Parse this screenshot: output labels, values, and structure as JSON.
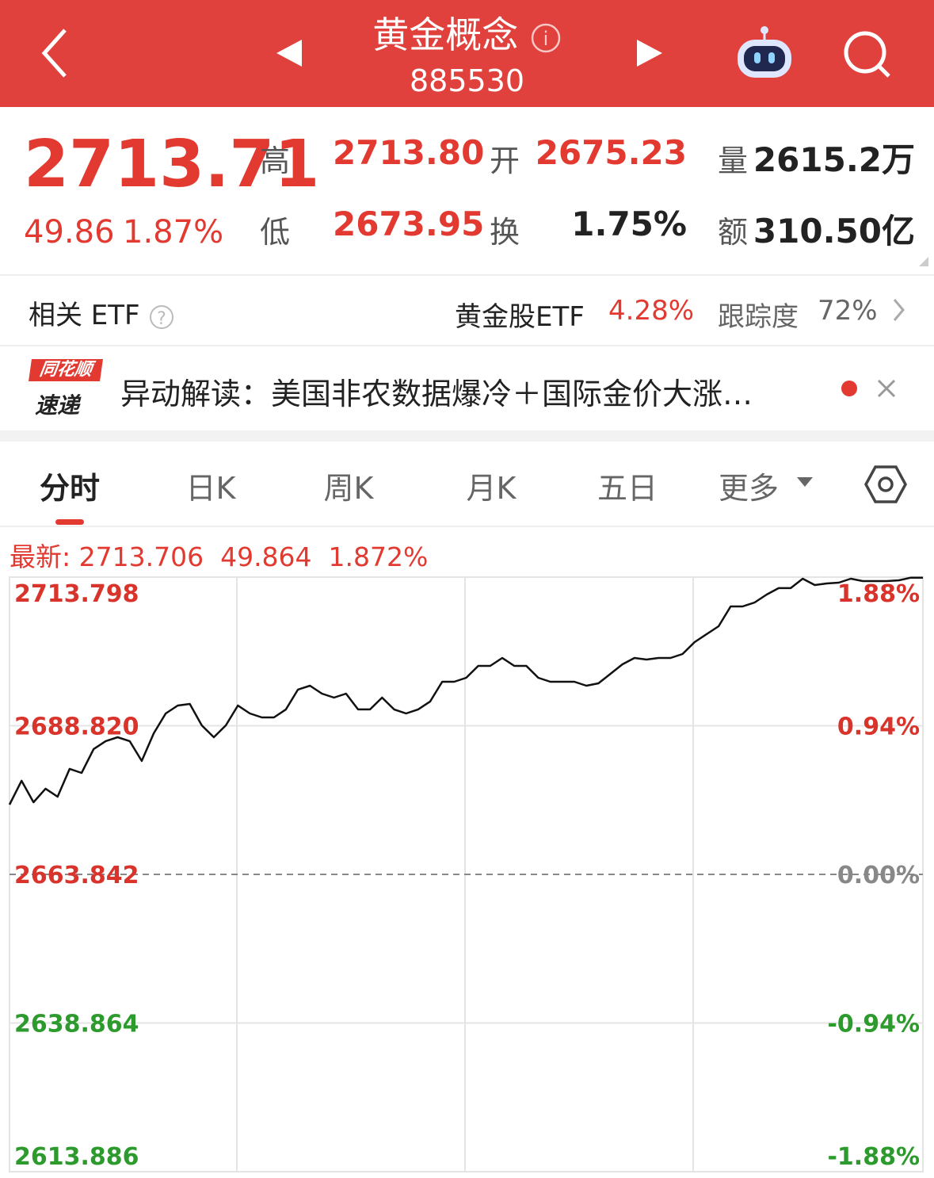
{
  "header": {
    "title": "黄金概念",
    "code": "885530"
  },
  "quote": {
    "price": "2713.71",
    "change": "49.86",
    "change_pct": "1.87%",
    "high_label": "高",
    "high": "2713.80",
    "low_label": "低",
    "low": "2673.95",
    "open_label": "开",
    "open": "2675.23",
    "turnover_label": "换",
    "turnover": "1.75%",
    "volume_label": "量",
    "volume": "2615.2万",
    "amount_label": "额",
    "amount": "310.50亿"
  },
  "etf": {
    "label": "相关 ETF",
    "name": "黄金股ETF",
    "change": "4.28%",
    "tracking_label": "跟踪度",
    "tracking": "72%"
  },
  "news": {
    "logo_top": "同花顺",
    "logo_bottom": "速递",
    "text": "异动解读：美国非农数据爆冷＋国际金价大涨…"
  },
  "tabs": [
    "分时",
    "日K",
    "周K",
    "月K",
    "五日",
    "更多"
  ],
  "latest": {
    "label": "最新:",
    "price": "2713.706",
    "change": "49.864",
    "change_pct": "1.872%"
  },
  "chart_data": {
    "type": "line",
    "values": [
      2675.57,
      2679.57,
      2675.97,
      2678.24,
      2676.9,
      2681.57,
      2680.9,
      2684.9,
      2686.23,
      2686.89,
      2686.23,
      2682.9,
      2687.56,
      2690.89,
      2692.22,
      2692.49,
      2688.89,
      2686.89,
      2688.89,
      2692.22,
      2690.89,
      2690.22,
      2690.22,
      2691.56,
      2694.89,
      2695.55,
      2694.22,
      2693.55,
      2694.22,
      2691.56,
      2691.56,
      2693.55,
      2691.56,
      2690.89,
      2691.56,
      2692.89,
      2696.22,
      2696.22,
      2696.88,
      2698.88,
      2698.88,
      2700.21,
      2698.88,
      2698.88,
      2696.88,
      2696.22,
      2696.22,
      2696.22,
      2695.55,
      2695.95,
      2697.55,
      2699.15,
      2700.21,
      2699.95,
      2700.21,
      2700.21,
      2700.88,
      2702.88,
      2704.21,
      2705.54,
      2708.87,
      2708.87,
      2709.54,
      2710.87,
      2711.94,
      2711.94,
      2713.53,
      2712.47,
      2712.73,
      2712.87,
      2713.53,
      2713.13,
      2713.13,
      2713.13,
      2713.27,
      2713.706,
      2713.706
    ],
    "color": "#111111",
    "ylim": [
      2613.886,
      2713.798
    ],
    "yticks": [
      2613.886,
      2638.864,
      {
        "value": 2663.842,
        "label": "2663.842"
      },
      {
        "value": 2688.82,
        "label": "2688.820"
      },
      2713.798
    ],
    "y2lim": [
      -1.88,
      1.88
    ],
    "y2ticks": [
      {
        "value": -1.88,
        "label": "-1.88%"
      },
      {
        "value": -0.94,
        "label": "-0.94%"
      },
      {
        "value": 0,
        "label": "0.00%"
      },
      {
        "value": 0.94,
        "label": "0.94%"
      },
      {
        "value": 1.88,
        "label": "1.88%"
      }
    ],
    "grid": true
  }
}
